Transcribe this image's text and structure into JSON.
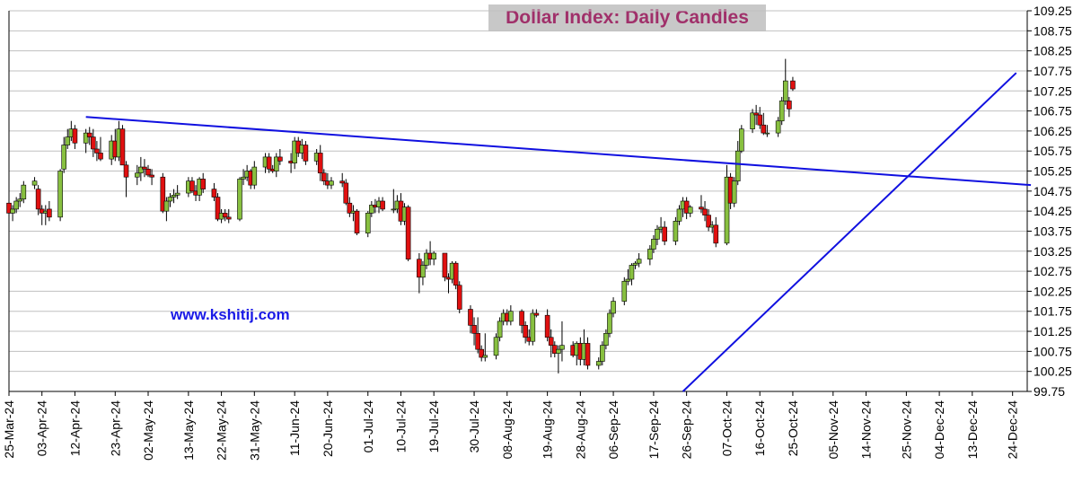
{
  "title": "Dollar Index: Daily Candles",
  "watermark": "www.kshitij.com",
  "colors": {
    "up": "#88c040",
    "down": "#e01010",
    "trendline": "#1010e0",
    "grid": "#c0c0c0",
    "title_text": "#a0306a",
    "title_bg": "#c8c8c8",
    "watermark": "#1a1ae6"
  },
  "chart_data": {
    "type": "candlestick",
    "title": "Dollar Index: Daily Candles",
    "ylim": [
      99.75,
      109.25
    ],
    "y_ticks": [
      99.75,
      100.25,
      100.75,
      101.25,
      101.75,
      102.25,
      102.75,
      103.25,
      103.75,
      104.25,
      104.75,
      105.25,
      105.75,
      106.25,
      106.75,
      107.25,
      107.75,
      108.25,
      108.75,
      109.25
    ],
    "y_axis_side": "right",
    "grid": "horizontal",
    "x_range": [
      "2024-03-25",
      "2024-12-28"
    ],
    "x_tick_labels": [
      "25-Mar-24",
      "03-Apr-24",
      "12-Apr-24",
      "23-Apr-24",
      "02-May-24",
      "13-May-24",
      "22-May-24",
      "31-May-24",
      "11-Jun-24",
      "20-Jun-24",
      "01-Jul-24",
      "10-Jul-24",
      "19-Jul-24",
      "30-Jul-24",
      "08-Aug-24",
      "19-Aug-24",
      "28-Aug-24",
      "06-Sep-24",
      "17-Sep-24",
      "26-Sep-24",
      "07-Oct-24",
      "16-Oct-24",
      "25-Oct-24",
      "05-Nov-24",
      "14-Nov-24",
      "25-Nov-24",
      "04-Dec-24",
      "13-Dec-24",
      "24-Dec-24"
    ],
    "candles": [
      {
        "o": 104.45,
        "h": 104.5,
        "l": 104.1,
        "c": 104.2
      },
      {
        "o": 104.2,
        "h": 104.4,
        "l": 104.0,
        "c": 104.3
      },
      {
        "o": 104.3,
        "h": 104.6,
        "l": 104.2,
        "c": 104.5
      },
      {
        "o": 104.5,
        "h": 104.7,
        "l": 104.35,
        "c": 104.55
      },
      {
        "o": 104.55,
        "h": 105.0,
        "l": 104.45,
        "c": 104.9
      },
      {
        "o": 104.9,
        "h": 105.1,
        "l": 104.8,
        "c": 105.0
      },
      {
        "o": 104.8,
        "h": 104.9,
        "l": 104.15,
        "c": 104.3
      },
      {
        "o": 104.3,
        "h": 104.4,
        "l": 103.9,
        "c": 104.2
      },
      {
        "o": 104.2,
        "h": 104.4,
        "l": 103.9,
        "c": 104.25
      },
      {
        "o": 104.3,
        "h": 104.5,
        "l": 104.0,
        "c": 104.1
      },
      {
        "o": 104.1,
        "h": 105.3,
        "l": 104.0,
        "c": 105.25
      },
      {
        "o": 105.3,
        "h": 106.1,
        "l": 105.2,
        "c": 105.9
      },
      {
        "o": 105.9,
        "h": 106.3,
        "l": 105.8,
        "c": 106.1
      },
      {
        "o": 106.1,
        "h": 106.5,
        "l": 106.0,
        "c": 106.3
      },
      {
        "o": 106.3,
        "h": 106.4,
        "l": 105.8,
        "c": 105.95
      },
      {
        "o": 105.95,
        "h": 106.3,
        "l": 105.7,
        "c": 106.2
      },
      {
        "o": 106.2,
        "h": 106.35,
        "l": 105.9,
        "c": 106.1
      },
      {
        "o": 106.1,
        "h": 106.3,
        "l": 105.6,
        "c": 105.8
      },
      {
        "o": 105.8,
        "h": 106.0,
        "l": 105.5,
        "c": 105.7
      },
      {
        "o": 105.7,
        "h": 106.1,
        "l": 105.5,
        "c": 105.55
      },
      {
        "o": 105.55,
        "h": 106.15,
        "l": 105.4,
        "c": 106.0
      },
      {
        "o": 106.0,
        "h": 106.3,
        "l": 105.5,
        "c": 105.6
      },
      {
        "o": 105.6,
        "h": 106.5,
        "l": 105.5,
        "c": 106.3
      },
      {
        "o": 106.3,
        "h": 106.4,
        "l": 105.4,
        "c": 105.4
      },
      {
        "o": 105.4,
        "h": 105.5,
        "l": 104.6,
        "c": 105.1
      },
      {
        "o": 105.1,
        "h": 105.4,
        "l": 104.9,
        "c": 105.2
      },
      {
        "o": 105.2,
        "h": 105.6,
        "l": 105.0,
        "c": 105.35
      },
      {
        "o": 105.35,
        "h": 105.55,
        "l": 105.1,
        "c": 105.3
      },
      {
        "o": 105.3,
        "h": 105.4,
        "l": 105.1,
        "c": 105.15
      },
      {
        "o": 105.15,
        "h": 105.3,
        "l": 104.9,
        "c": 105.1
      },
      {
        "o": 105.1,
        "h": 105.2,
        "l": 104.2,
        "c": 104.25
      },
      {
        "o": 104.25,
        "h": 104.6,
        "l": 104.0,
        "c": 104.5
      },
      {
        "o": 104.5,
        "h": 104.7,
        "l": 104.35,
        "c": 104.6
      },
      {
        "o": 104.6,
        "h": 104.8,
        "l": 104.45,
        "c": 104.65
      },
      {
        "o": 104.65,
        "h": 104.9,
        "l": 104.55,
        "c": 104.7
      },
      {
        "o": 104.7,
        "h": 105.1,
        "l": 104.6,
        "c": 105.0
      },
      {
        "o": 105.0,
        "h": 105.1,
        "l": 104.7,
        "c": 104.75
      },
      {
        "o": 104.75,
        "h": 104.9,
        "l": 104.5,
        "c": 104.65
      },
      {
        "o": 104.65,
        "h": 105.1,
        "l": 104.5,
        "c": 105.05
      },
      {
        "o": 105.05,
        "h": 105.2,
        "l": 104.7,
        "c": 104.8
      },
      {
        "o": 104.8,
        "h": 104.95,
        "l": 104.5,
        "c": 104.6
      },
      {
        "o": 104.6,
        "h": 104.7,
        "l": 104.0,
        "c": 104.05
      },
      {
        "o": 104.05,
        "h": 104.3,
        "l": 103.95,
        "c": 104.2
      },
      {
        "o": 104.2,
        "h": 104.3,
        "l": 104.0,
        "c": 104.1
      },
      {
        "o": 104.1,
        "h": 104.3,
        "l": 103.95,
        "c": 104.05
      },
      {
        "o": 104.05,
        "h": 105.1,
        "l": 104.0,
        "c": 105.05
      },
      {
        "o": 105.05,
        "h": 105.3,
        "l": 104.9,
        "c": 105.1
      },
      {
        "o": 105.1,
        "h": 105.4,
        "l": 105.0,
        "c": 105.25
      },
      {
        "o": 105.25,
        "h": 105.3,
        "l": 104.8,
        "c": 104.9
      },
      {
        "o": 104.9,
        "h": 105.5,
        "l": 104.8,
        "c": 105.35
      },
      {
        "o": 105.35,
        "h": 105.7,
        "l": 105.2,
        "c": 105.6
      },
      {
        "o": 105.6,
        "h": 105.7,
        "l": 105.2,
        "c": 105.3
      },
      {
        "o": 105.3,
        "h": 105.4,
        "l": 105.2,
        "c": 105.25
      },
      {
        "o": 105.25,
        "h": 105.7,
        "l": 105.1,
        "c": 105.6
      },
      {
        "o": 105.6,
        "h": 105.8,
        "l": 105.4,
        "c": 105.5
      },
      {
        "o": 105.5,
        "h": 105.7,
        "l": 105.2,
        "c": 105.45
      },
      {
        "o": 105.45,
        "h": 106.1,
        "l": 105.3,
        "c": 106.0
      },
      {
        "o": 106.0,
        "h": 106.1,
        "l": 105.6,
        "c": 105.7
      },
      {
        "o": 105.7,
        "h": 106.05,
        "l": 105.55,
        "c": 105.9
      },
      {
        "o": 105.9,
        "h": 106.0,
        "l": 105.4,
        "c": 105.5
      },
      {
        "o": 105.5,
        "h": 105.8,
        "l": 105.4,
        "c": 105.7
      },
      {
        "o": 105.7,
        "h": 105.9,
        "l": 105.0,
        "c": 105.2
      },
      {
        "o": 105.2,
        "h": 105.3,
        "l": 104.9,
        "c": 105.0
      },
      {
        "o": 105.0,
        "h": 105.2,
        "l": 104.8,
        "c": 104.9
      },
      {
        "o": 104.9,
        "h": 105.1,
        "l": 104.8,
        "c": 105.0
      },
      {
        "o": 105.0,
        "h": 105.2,
        "l": 104.85,
        "c": 104.95
      },
      {
        "o": 104.95,
        "h": 105.05,
        "l": 104.4,
        "c": 104.45
      },
      {
        "o": 104.45,
        "h": 104.6,
        "l": 104.1,
        "c": 104.2
      },
      {
        "o": 104.2,
        "h": 104.4,
        "l": 104.0,
        "c": 104.25
      },
      {
        "o": 104.25,
        "h": 104.3,
        "l": 103.65,
        "c": 103.7
      },
      {
        "o": 103.7,
        "h": 104.25,
        "l": 103.6,
        "c": 104.2
      },
      {
        "o": 104.2,
        "h": 104.5,
        "l": 104.1,
        "c": 104.4
      },
      {
        "o": 104.4,
        "h": 104.55,
        "l": 104.2,
        "c": 104.35
      },
      {
        "o": 104.35,
        "h": 104.6,
        "l": 104.2,
        "c": 104.5
      },
      {
        "o": 104.5,
        "h": 104.6,
        "l": 104.25,
        "c": 104.3
      },
      {
        "o": 104.3,
        "h": 104.8,
        "l": 104.2,
        "c": 104.3
      },
      {
        "o": 104.3,
        "h": 104.65,
        "l": 104.2,
        "c": 104.5
      },
      {
        "o": 104.5,
        "h": 104.7,
        "l": 103.9,
        "c": 104.0
      },
      {
        "o": 104.0,
        "h": 104.45,
        "l": 103.9,
        "c": 104.35
      },
      {
        "o": 104.35,
        "h": 104.4,
        "l": 103.0,
        "c": 103.05
      },
      {
        "o": 103.05,
        "h": 103.2,
        "l": 102.2,
        "c": 102.6
      },
      {
        "o": 102.6,
        "h": 103.0,
        "l": 102.4,
        "c": 102.9
      },
      {
        "o": 102.9,
        "h": 103.3,
        "l": 102.8,
        "c": 103.2
      },
      {
        "o": 103.2,
        "h": 103.5,
        "l": 102.9,
        "c": 103.05
      },
      {
        "o": 103.05,
        "h": 103.25,
        "l": 102.9,
        "c": 103.2
      },
      {
        "o": 103.2,
        "h": 103.2,
        "l": 102.5,
        "c": 102.6
      },
      {
        "o": 102.6,
        "h": 102.7,
        "l": 102.2,
        "c": 102.55
      },
      {
        "o": 102.55,
        "h": 103.0,
        "l": 102.45,
        "c": 102.95
      },
      {
        "o": 102.95,
        "h": 103.0,
        "l": 102.3,
        "c": 102.4
      },
      {
        "o": 102.4,
        "h": 102.5,
        "l": 101.7,
        "c": 101.8
      },
      {
        "o": 101.8,
        "h": 101.9,
        "l": 101.2,
        "c": 101.4
      },
      {
        "o": 101.4,
        "h": 101.6,
        "l": 100.9,
        "c": 101.2
      },
      {
        "o": 101.2,
        "h": 101.6,
        "l": 100.7,
        "c": 100.8
      },
      {
        "o": 100.8,
        "h": 100.9,
        "l": 100.5,
        "c": 100.6
      },
      {
        "o": 100.6,
        "h": 101.2,
        "l": 100.5,
        "c": 100.65
      },
      {
        "o": 100.65,
        "h": 101.2,
        "l": 100.55,
        "c": 101.1
      },
      {
        "o": 101.1,
        "h": 101.6,
        "l": 101.0,
        "c": 101.5
      },
      {
        "o": 101.5,
        "h": 101.8,
        "l": 101.4,
        "c": 101.7
      },
      {
        "o": 101.7,
        "h": 101.8,
        "l": 101.4,
        "c": 101.5
      },
      {
        "o": 101.5,
        "h": 101.9,
        "l": 101.4,
        "c": 101.75
      },
      {
        "o": 101.75,
        "h": 101.8,
        "l": 101.2,
        "c": 101.4
      },
      {
        "o": 101.4,
        "h": 101.5,
        "l": 100.95,
        "c": 101.1
      },
      {
        "o": 101.1,
        "h": 101.3,
        "l": 100.9,
        "c": 101.0
      },
      {
        "o": 101.0,
        "h": 101.8,
        "l": 100.9,
        "c": 101.7
      },
      {
        "o": 101.7,
        "h": 101.8,
        "l": 101.6,
        "c": 101.65
      },
      {
        "o": 101.65,
        "h": 101.8,
        "l": 101.0,
        "c": 101.1
      },
      {
        "o": 101.1,
        "h": 101.3,
        "l": 100.6,
        "c": 100.9
      },
      {
        "o": 100.9,
        "h": 101.0,
        "l": 100.6,
        "c": 100.7
      },
      {
        "o": 100.7,
        "h": 100.9,
        "l": 100.2,
        "c": 100.8
      },
      {
        "o": 100.8,
        "h": 101.5,
        "l": 100.5,
        "c": 100.9
      },
      {
        "o": 100.9,
        "h": 101.0,
        "l": 100.6,
        "c": 100.65
      },
      {
        "o": 100.65,
        "h": 101.0,
        "l": 100.4,
        "c": 100.95
      },
      {
        "o": 100.95,
        "h": 101.1,
        "l": 100.4,
        "c": 100.55
      },
      {
        "o": 100.55,
        "h": 101.3,
        "l": 100.4,
        "c": 100.95
      },
      {
        "o": 100.95,
        "h": 101.1,
        "l": 100.3,
        "c": 100.4
      },
      {
        "o": 100.4,
        "h": 100.6,
        "l": 100.3,
        "c": 100.5
      },
      {
        "o": 100.5,
        "h": 101.0,
        "l": 100.4,
        "c": 100.9
      },
      {
        "o": 100.9,
        "h": 101.3,
        "l": 100.8,
        "c": 101.2
      },
      {
        "o": 101.2,
        "h": 101.8,
        "l": 101.1,
        "c": 101.7
      },
      {
        "o": 101.7,
        "h": 102.1,
        "l": 101.6,
        "c": 102.0
      },
      {
        "o": 102.0,
        "h": 102.6,
        "l": 101.9,
        "c": 102.5
      },
      {
        "o": 102.5,
        "h": 102.8,
        "l": 102.4,
        "c": 102.55
      },
      {
        "o": 102.55,
        "h": 102.95,
        "l": 102.4,
        "c": 102.9
      },
      {
        "o": 102.9,
        "h": 103.0,
        "l": 102.8,
        "c": 102.95
      },
      {
        "o": 102.95,
        "h": 103.2,
        "l": 102.85,
        "c": 103.05
      },
      {
        "o": 103.05,
        "h": 103.4,
        "l": 102.9,
        "c": 103.3
      },
      {
        "o": 103.3,
        "h": 103.65,
        "l": 103.2,
        "c": 103.55
      },
      {
        "o": 103.55,
        "h": 103.9,
        "l": 103.4,
        "c": 103.8
      },
      {
        "o": 103.8,
        "h": 104.1,
        "l": 103.7,
        "c": 103.85
      },
      {
        "o": 103.85,
        "h": 104.0,
        "l": 103.4,
        "c": 103.5
      },
      {
        "o": 103.5,
        "h": 104.1,
        "l": 103.4,
        "c": 104.0
      },
      {
        "o": 104.0,
        "h": 104.4,
        "l": 103.9,
        "c": 104.3
      },
      {
        "o": 104.3,
        "h": 104.6,
        "l": 104.1,
        "c": 104.5
      },
      {
        "o": 104.5,
        "h": 104.6,
        "l": 104.05,
        "c": 104.2
      },
      {
        "o": 104.2,
        "h": 104.4,
        "l": 104.1,
        "c": 104.35
      },
      {
        "o": 104.35,
        "h": 104.65,
        "l": 104.2,
        "c": 104.3
      },
      {
        "o": 104.3,
        "h": 104.5,
        "l": 104.0,
        "c": 104.15
      },
      {
        "o": 104.15,
        "h": 104.3,
        "l": 103.75,
        "c": 103.85
      },
      {
        "o": 103.85,
        "h": 104.0,
        "l": 103.7,
        "c": 103.9
      },
      {
        "o": 103.9,
        "h": 104.1,
        "l": 103.35,
        "c": 103.45
      },
      {
        "o": 103.45,
        "h": 105.4,
        "l": 103.4,
        "c": 105.1
      },
      {
        "o": 105.1,
        "h": 105.2,
        "l": 104.3,
        "c": 104.45
      },
      {
        "o": 104.45,
        "h": 105.1,
        "l": 104.35,
        "c": 105.0
      },
      {
        "o": 105.0,
        "h": 106.0,
        "l": 104.9,
        "c": 105.75
      },
      {
        "o": 105.75,
        "h": 106.4,
        "l": 105.7,
        "c": 106.3
      },
      {
        "o": 106.3,
        "h": 106.8,
        "l": 106.2,
        "c": 106.7
      },
      {
        "o": 106.7,
        "h": 106.9,
        "l": 106.4,
        "c": 106.65
      },
      {
        "o": 106.65,
        "h": 106.85,
        "l": 106.3,
        "c": 106.4
      },
      {
        "o": 106.4,
        "h": 106.7,
        "l": 106.15,
        "c": 106.2
      },
      {
        "o": 106.2,
        "h": 106.4,
        "l": 106.1,
        "c": 106.2
      },
      {
        "o": 106.2,
        "h": 106.6,
        "l": 106.1,
        "c": 106.5
      },
      {
        "o": 106.5,
        "h": 107.1,
        "l": 106.4,
        "c": 107.0
      },
      {
        "o": 107.0,
        "h": 108.05,
        "l": 106.9,
        "c": 107.5
      },
      {
        "o": 107.0,
        "h": 107.1,
        "l": 106.6,
        "c": 106.8
      },
      {
        "o": 107.5,
        "h": 107.6,
        "l": 107.25,
        "c": 107.3
      }
    ],
    "trendlines": [
      {
        "from": {
          "date": "2024-04-15",
          "value": 106.6
        },
        "to": {
          "date": "2024-12-29",
          "value": 104.9
        }
      },
      {
        "from": {
          "date": "2024-09-25",
          "value": 99.75
        },
        "to": {
          "date": "2024-12-25",
          "value": 107.7
        }
      }
    ]
  }
}
